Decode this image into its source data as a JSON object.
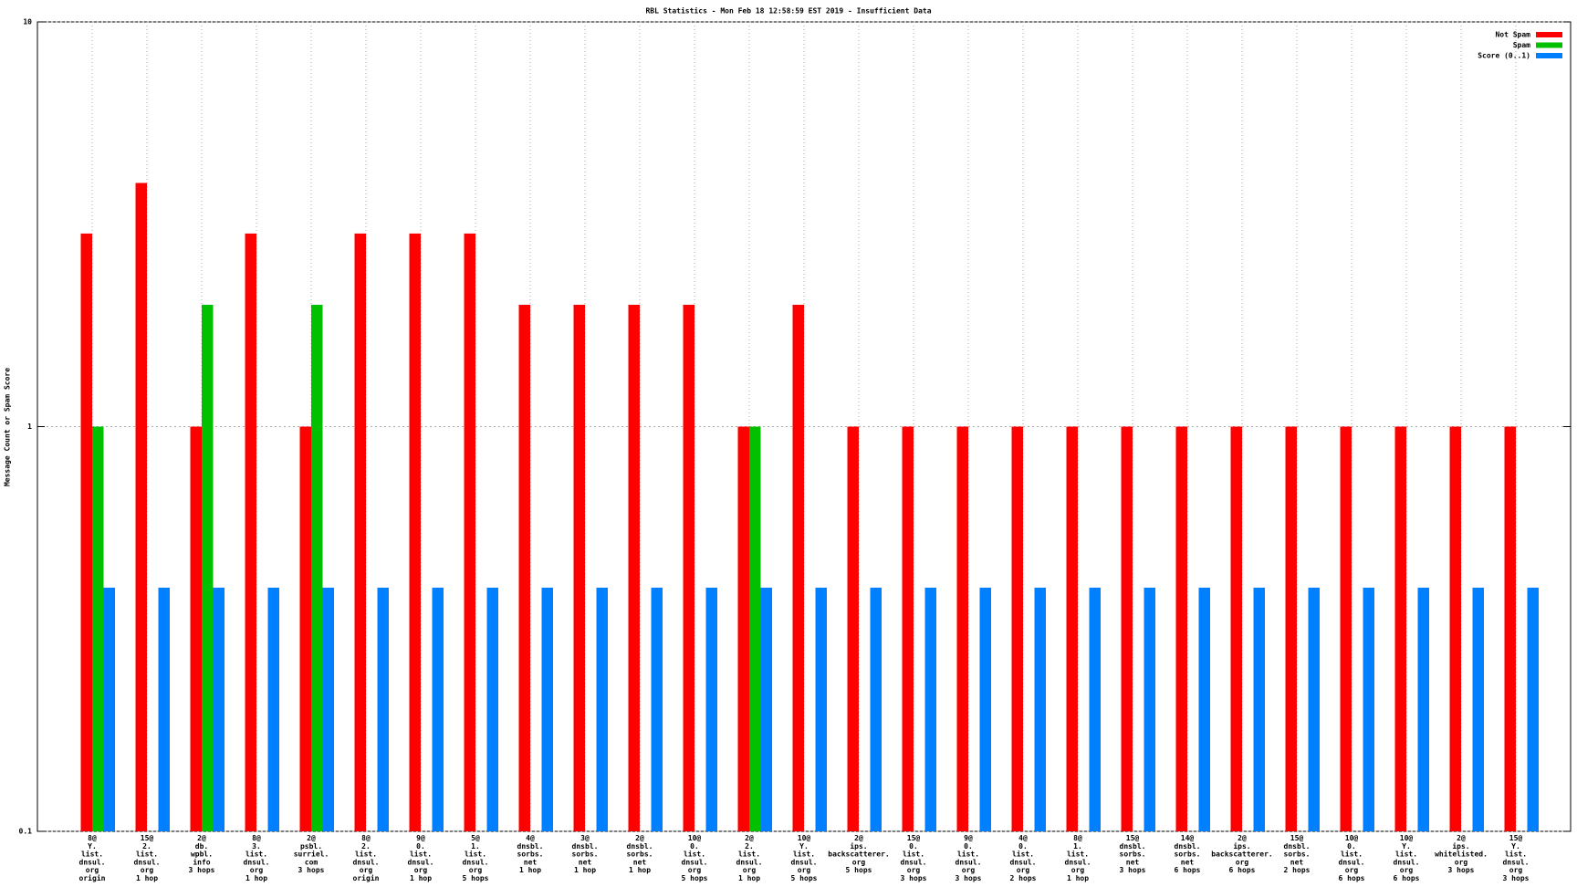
{
  "chart_data": {
    "type": "bar",
    "title": "RBL Statistics - Mon Feb 18 12:58:59 EST 2019 - Insufficient Data",
    "y_label": "Message Count or Spam Score",
    "categories": [
      [
        "8@",
        "Y.",
        "list.",
        "dnsul.",
        "org",
        "origin"
      ],
      [
        "15@",
        "2.",
        "list.",
        "dnsul.",
        "org",
        "1 hop"
      ],
      [
        "2@",
        "db.",
        "wpbl.",
        "info",
        "3 hops"
      ],
      [
        "8@",
        "3.",
        "list.",
        "dnsul.",
        "org",
        "1 hop"
      ],
      [
        "2@",
        "psbl.",
        "surriel.",
        "com",
        "3 hops"
      ],
      [
        "8@",
        "2.",
        "list.",
        "dnsul.",
        "org",
        "origin"
      ],
      [
        "9@",
        "0.",
        "list.",
        "dnsul.",
        "org",
        "1 hop"
      ],
      [
        "5@",
        "1.",
        "list.",
        "dnsul.",
        "org",
        "5 hops"
      ],
      [
        "4@",
        "dnsbl.",
        "sorbs.",
        "net",
        "1 hop"
      ],
      [
        "3@",
        "dnsbl.",
        "sorbs.",
        "net",
        "1 hop"
      ],
      [
        "2@",
        "dnsbl.",
        "sorbs.",
        "net",
        "1 hop"
      ],
      [
        "10@",
        "0.",
        "list.",
        "dnsul.",
        "org",
        "5 hops"
      ],
      [
        "2@",
        "2.",
        "list.",
        "dnsul.",
        "org",
        "1 hop"
      ],
      [
        "10@",
        "Y.",
        "list.",
        "dnsul.",
        "org",
        "5 hops"
      ],
      [
        "2@",
        "ips.",
        "backscatterer.",
        "org",
        "5 hops"
      ],
      [
        "15@",
        "0.",
        "list.",
        "dnsul.",
        "org",
        "3 hops"
      ],
      [
        "9@",
        "0.",
        "list.",
        "dnsul.",
        "org",
        "3 hops"
      ],
      [
        "4@",
        "0.",
        "list.",
        "dnsul.",
        "org",
        "2 hops"
      ],
      [
        "8@",
        "1.",
        "list.",
        "dnsul.",
        "org",
        "1 hop"
      ],
      [
        "15@",
        "dnsbl.",
        "sorbs.",
        "net",
        "3 hops"
      ],
      [
        "14@",
        "dnsbl.",
        "sorbs.",
        "net",
        "6 hops"
      ],
      [
        "2@",
        "ips.",
        "backscatterer.",
        "org",
        "6 hops"
      ],
      [
        "15@",
        "dnsbl.",
        "sorbs.",
        "net",
        "2 hops"
      ],
      [
        "10@",
        "0.",
        "list.",
        "dnsul.",
        "org",
        "6 hops"
      ],
      [
        "10@",
        "Y.",
        "list.",
        "dnsul.",
        "org",
        "6 hops"
      ],
      [
        "2@",
        "ips.",
        "whitelisted.",
        "org",
        "3 hops"
      ],
      [
        "15@",
        "Y.",
        "list.",
        "dnsul.",
        "org",
        "3 hops"
      ]
    ],
    "series": [
      {
        "name": "Not Spam",
        "color": "#ff0000",
        "values": [
          3,
          4,
          1,
          3,
          1,
          3,
          3,
          3,
          2,
          2,
          2,
          2,
          1,
          2,
          1,
          1,
          1,
          1,
          1,
          1,
          1,
          1,
          1,
          1,
          1,
          1,
          1
        ]
      },
      {
        "name": "Spam",
        "color": "#00c000",
        "values": [
          1,
          null,
          2,
          null,
          2,
          null,
          null,
          null,
          null,
          null,
          null,
          null,
          1,
          null,
          null,
          null,
          null,
          null,
          null,
          null,
          null,
          null,
          null,
          null,
          null,
          null,
          null
        ]
      },
      {
        "name": "Score (0..1)",
        "color": "#0080ff",
        "values": [
          0.4,
          0.4,
          0.4,
          0.4,
          0.4,
          0.4,
          0.4,
          0.4,
          0.4,
          0.4,
          0.4,
          0.4,
          0.4,
          0.4,
          0.4,
          0.4,
          0.4,
          0.4,
          0.4,
          0.4,
          0.4,
          0.4,
          0.4,
          0.4,
          0.4,
          0.4,
          0.4
        ]
      }
    ],
    "ylim": [
      0.1,
      10
    ],
    "yticks": [
      0.1,
      1,
      10
    ],
    "log_scale_y": true,
    "grid": true,
    "legend": "top-right"
  }
}
